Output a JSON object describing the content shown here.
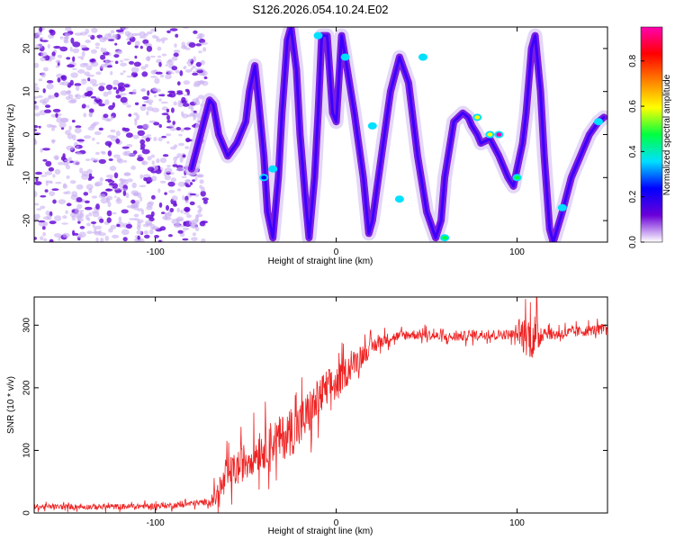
{
  "title": "S126.2026.054.10.24.E02",
  "colors": {
    "snr_line": "#ee2222",
    "axis": "#000000",
    "colormap": [
      "#ffffff",
      "#6a00d8",
      "#0000ff",
      "#00e0ff",
      "#00ff40",
      "#ffff00",
      "#ff8000",
      "#ff0000",
      "#ff00b0"
    ]
  },
  "chart_data": [
    {
      "type": "heatmap",
      "xlabel": "Height of straight line (km)",
      "ylabel": "Frequency (Hz)",
      "xlim": [
        -167,
        150
      ],
      "ylim": [
        -25,
        25
      ],
      "xticks": [
        -100,
        0,
        100
      ],
      "yticks": [
        -20,
        -10,
        0,
        10,
        20
      ],
      "colorbar": {
        "label": "Normalized spectral amplitude",
        "range": [
          0.0,
          0.95
        ],
        "ticks": [
          0.0,
          0.2,
          0.4,
          0.6,
          0.8
        ],
        "tick_labels": [
          "0.0",
          "0.2",
          "0.4",
          "0.6",
          "0.8"
        ]
      },
      "noise_region": {
        "x_from": -167,
        "x_to": -80
      },
      "ridge": {
        "x": [
          -80,
          -75,
          -70,
          -68,
          -65,
          -60,
          -55,
          -50,
          -48,
          -45,
          -43,
          -40,
          -38,
          -35,
          -32,
          -30,
          -27,
          -25,
          -22,
          -20,
          -17,
          -15,
          -12,
          -10,
          -8,
          -5,
          -2,
          0,
          3,
          5,
          10,
          15,
          18,
          20,
          25,
          30,
          35,
          40,
          45,
          50,
          55,
          58,
          60,
          65,
          70,
          73,
          75,
          78,
          80,
          85,
          90,
          95,
          98,
          100,
          103,
          105,
          108,
          110,
          113,
          115,
          118,
          120,
          125,
          130,
          135,
          140,
          145,
          148
        ],
        "y": [
          -8,
          0,
          8,
          7,
          0,
          -5,
          -2,
          3,
          10,
          16,
          8,
          -5,
          -18,
          -24,
          -10,
          5,
          22,
          25,
          15,
          0,
          -15,
          -24,
          -10,
          5,
          23,
          23,
          5,
          3,
          23,
          18,
          5,
          -10,
          -23,
          -20,
          -5,
          10,
          18,
          12,
          -5,
          -18,
          -24,
          -20,
          -10,
          3,
          5,
          4,
          2,
          0,
          -2,
          -1,
          -5,
          -10,
          -12,
          -8,
          -2,
          5,
          20,
          23,
          10,
          -5,
          -22,
          -25,
          -18,
          -10,
          -5,
          0,
          3,
          4
        ],
        "peak_x": [
          -40,
          -35,
          -10,
          5,
          20,
          35,
          48,
          60,
          78,
          85,
          90,
          100,
          125,
          145
        ],
        "peak_y": [
          -10,
          -8,
          23,
          18,
          2,
          -15,
          18,
          -24,
          4,
          0,
          0,
          -10,
          -17,
          3
        ],
        "peak_amp": [
          0.25,
          0.3,
          0.3,
          0.35,
          0.4,
          0.35,
          0.4,
          0.45,
          0.55,
          0.6,
          0.9,
          0.45,
          0.4,
          0.35
        ]
      }
    },
    {
      "type": "line",
      "xlabel": "Height of straight line (km)",
      "ylabel": "SNR (10 * v/v)",
      "xlim": [
        -167,
        150
      ],
      "ylim": [
        0,
        345
      ],
      "xticks": [
        -100,
        0,
        100
      ],
      "yticks": [
        0,
        100,
        200,
        300
      ],
      "trend": {
        "x": [
          -167,
          -120,
          -90,
          -70,
          -65,
          -60,
          -55,
          -50,
          -45,
          -40,
          -35,
          -30,
          -25,
          -20,
          -15,
          -10,
          -5,
          0,
          5,
          10,
          15,
          20,
          25,
          30,
          40,
          50,
          60,
          80,
          100,
          105,
          110,
          115,
          120,
          135,
          150
        ],
        "y": [
          10,
          10,
          12,
          18,
          30,
          60,
          70,
          85,
          95,
          105,
          115,
          120,
          130,
          140,
          160,
          180,
          200,
          205,
          225,
          240,
          255,
          265,
          275,
          280,
          285,
          285,
          280,
          285,
          285,
          285,
          280,
          290,
          285,
          290,
          295
        ]
      },
      "noise_amplitude": {
        "x": [
          -167,
          -70,
          -65,
          -20,
          -10,
          10,
          30,
          100,
          103,
          110,
          115,
          150
        ],
        "y": [
          4,
          5,
          25,
          40,
          35,
          20,
          8,
          8,
          30,
          40,
          10,
          8
        ]
      }
    }
  ]
}
